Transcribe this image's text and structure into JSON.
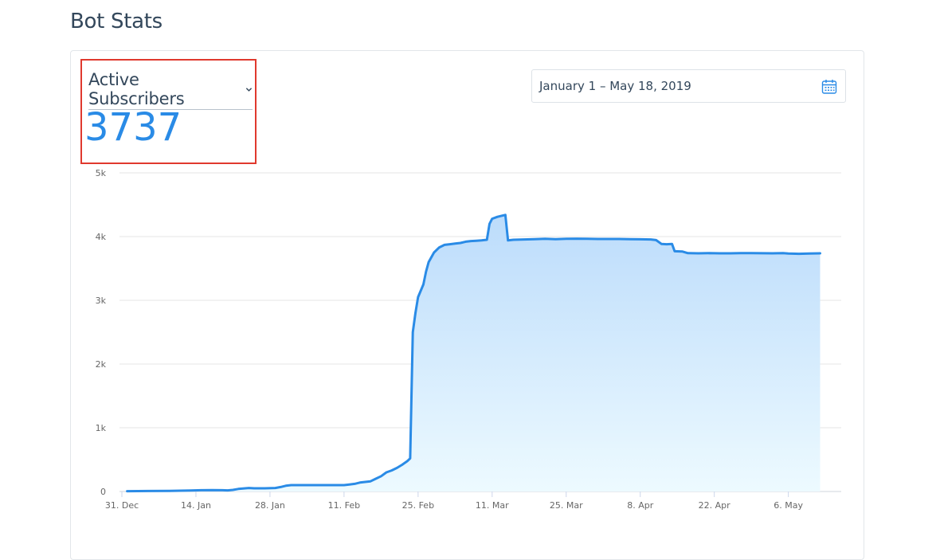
{
  "page": {
    "title": "Bot Stats"
  },
  "metric": {
    "selected": "Active Subscribers",
    "value": "3737"
  },
  "date_range": {
    "value": "January 1 – May 18, 2019"
  },
  "colors": {
    "accent": "#2a8be6",
    "highlight": "#e0392e",
    "area_top": "#bcdcfb",
    "area_bottom": "#edfaff"
  },
  "chart_data": {
    "type": "area",
    "title": "",
    "xlabel": "",
    "ylabel": "",
    "x_range": [
      0,
      138
    ],
    "ylim": [
      0,
      5000
    ],
    "y_ticks": [
      {
        "value": 0,
        "label": "0"
      },
      {
        "value": 1000,
        "label": "1k"
      },
      {
        "value": 2000,
        "label": "2k"
      },
      {
        "value": 3000,
        "label": "3k"
      },
      {
        "value": 4000,
        "label": "4k"
      },
      {
        "value": 5000,
        "label": "5k"
      }
    ],
    "x_ticks": [
      {
        "day": 0,
        "label": "31. Dec"
      },
      {
        "day": 14,
        "label": "14. Jan"
      },
      {
        "day": 28,
        "label": "28. Jan"
      },
      {
        "day": 42,
        "label": "11. Feb"
      },
      {
        "day": 56,
        "label": "25. Feb"
      },
      {
        "day": 70,
        "label": "11. Mar"
      },
      {
        "day": 84,
        "label": "25. Mar"
      },
      {
        "day": 98,
        "label": "8. Apr"
      },
      {
        "day": 112,
        "label": "22. Apr"
      },
      {
        "day": 126,
        "label": "6. May"
      }
    ],
    "series": [
      {
        "name": "Active Subscribers",
        "points": [
          [
            1,
            5
          ],
          [
            5,
            8
          ],
          [
            9,
            10
          ],
          [
            13,
            15
          ],
          [
            15,
            20
          ],
          [
            17,
            22
          ],
          [
            19,
            20
          ],
          [
            20,
            18
          ],
          [
            21,
            25
          ],
          [
            22,
            40
          ],
          [
            24,
            55
          ],
          [
            25,
            50
          ],
          [
            27,
            50
          ],
          [
            29,
            55
          ],
          [
            30,
            70
          ],
          [
            31,
            90
          ],
          [
            32,
            100
          ],
          [
            34,
            100
          ],
          [
            36,
            100
          ],
          [
            38,
            100
          ],
          [
            40,
            100
          ],
          [
            42,
            100
          ],
          [
            43,
            110
          ],
          [
            44,
            120
          ],
          [
            45,
            140
          ],
          [
            46,
            150
          ],
          [
            47,
            160
          ],
          [
            48,
            200
          ],
          [
            49,
            240
          ],
          [
            50,
            300
          ],
          [
            51,
            330
          ],
          [
            52,
            370
          ],
          [
            53,
            420
          ],
          [
            54,
            480
          ],
          [
            54.5,
            520
          ],
          [
            55,
            2500
          ],
          [
            55.5,
            2800
          ],
          [
            56,
            3050
          ],
          [
            57,
            3250
          ],
          [
            57.5,
            3450
          ],
          [
            58,
            3600
          ],
          [
            59,
            3750
          ],
          [
            60,
            3830
          ],
          [
            61,
            3870
          ],
          [
            62,
            3880
          ],
          [
            63,
            3890
          ],
          [
            64,
            3900
          ],
          [
            65,
            3920
          ],
          [
            66,
            3930
          ],
          [
            67,
            3935
          ],
          [
            68,
            3940
          ],
          [
            69,
            3950
          ],
          [
            69.5,
            4200
          ],
          [
            70,
            4280
          ],
          [
            71,
            4310
          ],
          [
            72,
            4330
          ],
          [
            72.5,
            4340
          ],
          [
            73,
            3940
          ],
          [
            74,
            3950
          ],
          [
            76,
            3955
          ],
          [
            78,
            3960
          ],
          [
            80,
            3965
          ],
          [
            82,
            3960
          ],
          [
            84,
            3965
          ],
          [
            86,
            3968
          ],
          [
            88,
            3966
          ],
          [
            90,
            3962
          ],
          [
            92,
            3962
          ],
          [
            94,
            3962
          ],
          [
            96,
            3960
          ],
          [
            98,
            3958
          ],
          [
            100,
            3955
          ],
          [
            101,
            3945
          ],
          [
            102,
            3885
          ],
          [
            103,
            3880
          ],
          [
            104,
            3885
          ],
          [
            104.5,
            3770
          ],
          [
            106,
            3765
          ],
          [
            107,
            3740
          ],
          [
            109,
            3738
          ],
          [
            111,
            3740
          ],
          [
            113,
            3738
          ],
          [
            115,
            3737
          ],
          [
            117,
            3740
          ],
          [
            119,
            3740
          ],
          [
            121,
            3739
          ],
          [
            123,
            3738
          ],
          [
            125,
            3740
          ],
          [
            126,
            3735
          ],
          [
            128,
            3730
          ],
          [
            130,
            3735
          ],
          [
            132,
            3737
          ]
        ]
      }
    ]
  }
}
